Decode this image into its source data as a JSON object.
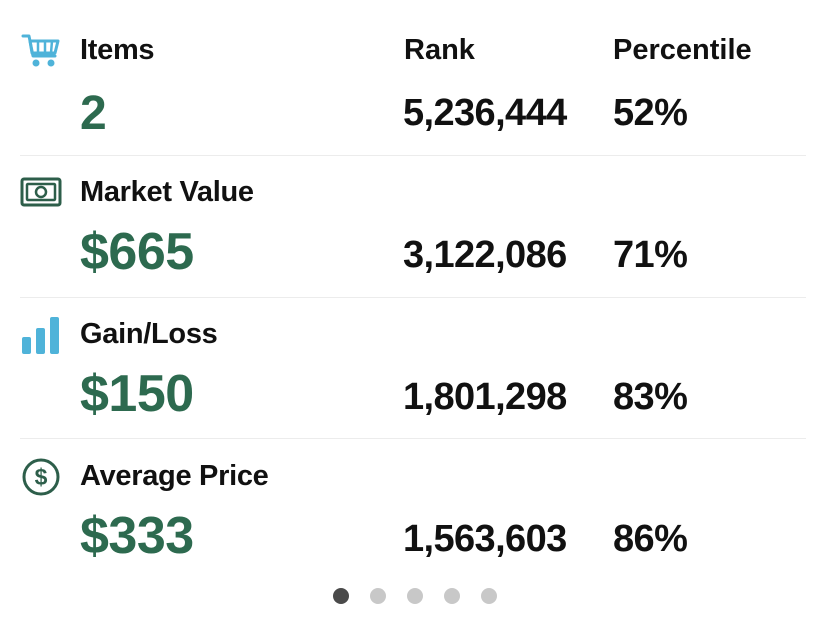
{
  "columns": {
    "rank": "Rank",
    "percentile": "Percentile"
  },
  "metrics": [
    {
      "icon": "shopping-cart-icon",
      "label": "Items",
      "value": "2",
      "rank": "5,236,444",
      "percentile": "52%"
    },
    {
      "icon": "cash-bill-icon",
      "label": "Market Value",
      "value": "$665",
      "rank": "3,122,086",
      "percentile": "71%"
    },
    {
      "icon": "bar-chart-icon",
      "label": "Gain/Loss",
      "value": "$150",
      "rank": "1,801,298",
      "percentile": "83%"
    },
    {
      "icon": "dollar-circle-icon",
      "label": "Average Price",
      "value": "$333",
      "rank": "1,563,603",
      "percentile": "86%"
    }
  ],
  "pager": {
    "count": 5,
    "active_index": 0
  },
  "colors": {
    "value_green": "#2d6a4f",
    "icon_blue": "#4fb3d9",
    "icon_dark_green": "#2d5e4a",
    "dot_active": "#4a4a4a",
    "dot_inactive": "#c8c8c8"
  }
}
